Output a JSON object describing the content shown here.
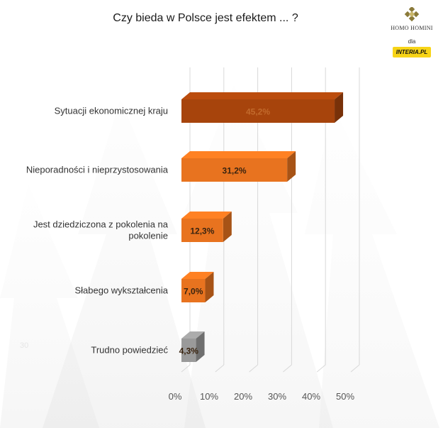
{
  "header": {
    "title": "Czy bieda w Polsce jest efektem ... ?"
  },
  "logo": {
    "name": "Homo Homini",
    "dla": "dla",
    "partner": "INTERIA.PL"
  },
  "stray_mark": "30",
  "chart_data": {
    "type": "bar",
    "orientation": "horizontal",
    "title": "Czy bieda w Polsce jest efektem ... ?",
    "categories": [
      "Sytuacji ekonomicznej kraju",
      "Nieporadności i nieprzystosowania",
      "Jest dziedziczona z pokolenia na pokolenie",
      "Słabego wykształcenia",
      "Trudno powiedzieć"
    ],
    "values": [
      45.2,
      31.2,
      12.3,
      7.0,
      4.3
    ],
    "value_labels": [
      "45,2%",
      "31,2%",
      "12,3%",
      "7,0%",
      "4,3%"
    ],
    "bar_colors": [
      "#a7440c",
      "#e8731f",
      "#e8731f",
      "#e8731f",
      "#9a9a9a"
    ],
    "xlim": [
      0,
      50
    ],
    "x_ticks": [
      "0%",
      "10%",
      "20%",
      "30%",
      "40%",
      "50%"
    ],
    "grid": true,
    "style": "3d"
  }
}
